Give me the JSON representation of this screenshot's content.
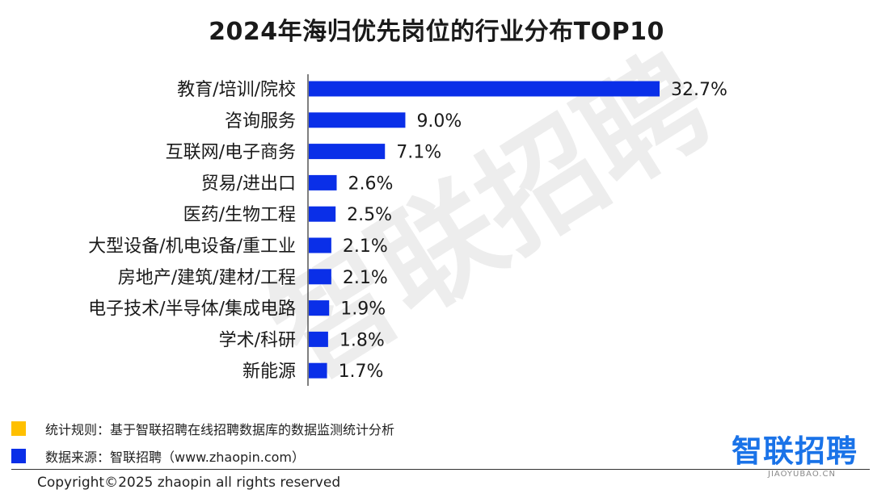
{
  "title": "2024年海归优先岗位的行业分布TOP10",
  "watermark": "智联招聘",
  "chart_data": {
    "type": "bar",
    "orientation": "horizontal",
    "categories": [
      "教育/培训/院校",
      "咨询服务",
      "互联网/电子商务",
      "贸易/进出口",
      "医药/生物工程",
      "大型设备/机电设备/重工业",
      "房地产/建筑/建材/工程",
      "电子技术/半导体/集成电路",
      "学术/科研",
      "新能源"
    ],
    "values": [
      32.7,
      9.0,
      7.1,
      2.6,
      2.5,
      2.1,
      2.1,
      1.9,
      1.8,
      1.7
    ],
    "value_labels": [
      "32.7%",
      "9.0%",
      "7.1%",
      "2.6%",
      "2.5%",
      "2.1%",
      "2.1%",
      "1.9%",
      "1.8%",
      "1.7%"
    ],
    "xlim": [
      0,
      35
    ],
    "bar_color": "#0a2fe8",
    "grid": false
  },
  "notes": [
    {
      "color": "#ffc000",
      "text": "统计规则：基于智联招聘在线招聘数据库的数据监测统计分析"
    },
    {
      "color": "#0a2fe8",
      "text": "数据来源：智联招聘（www.zhaopin.com）"
    }
  ],
  "copyright": "Copyright©2025 zhaopin all rights reserved",
  "logo": {
    "text": "智联招聘",
    "sub": "JIAOYUBAO.CN",
    "color": "#1a73e8"
  }
}
